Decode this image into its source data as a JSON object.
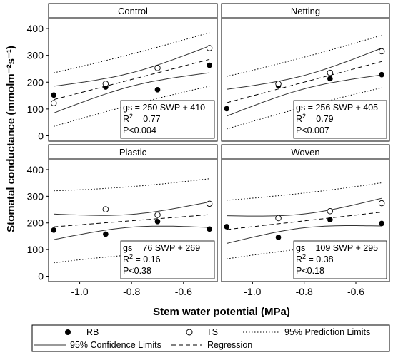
{
  "chart_data": {
    "type": "scatter",
    "xlabel": "Stem water potential (MPa)",
    "ylabel": "Stomatal conductance (mmolm⁻²s⁻¹)",
    "xlim": [
      -1.12,
      -0.47
    ],
    "ylim": [
      -20,
      440
    ],
    "x_ticks": [
      -1.0,
      -0.8,
      -0.6
    ],
    "x_tick_labels": [
      "-1.0",
      "-0.8",
      "-0.6"
    ],
    "y_ticks": [
      0,
      100,
      200,
      300,
      400
    ],
    "y_tick_labels": [
      "0",
      "100",
      "200",
      "300",
      "400"
    ],
    "legend": {
      "placement": "bottom",
      "rb": "RB",
      "ts": "TS",
      "prediction": "95% Prediction Limits",
      "confidence": "95% Confidence Limits",
      "regression": "Regression"
    },
    "panels": [
      {
        "title": "Control",
        "slope": 250,
        "intercept": 410,
        "ci_half": 50,
        "pi_half": 100,
        "eq": "gs = 250 SWP + 410",
        "r2_text": "= 0.77",
        "p": "P<0.004",
        "rb": [
          [
            -1.1,
            152
          ],
          [
            -0.9,
            182
          ],
          [
            -0.7,
            172
          ],
          [
            -0.5,
            263
          ]
        ],
        "ts": [
          [
            -1.1,
            122
          ],
          [
            -0.9,
            194
          ],
          [
            -0.7,
            253
          ],
          [
            -0.5,
            327
          ]
        ]
      },
      {
        "title": "Netting",
        "slope": 256,
        "intercept": 405,
        "ci_half": 50,
        "pi_half": 98,
        "eq": "gs = 256 SWP + 405",
        "r2_text": "= 0.79",
        "p": "P<0.007",
        "rb": [
          [
            -1.1,
            101
          ],
          [
            -0.9,
            187
          ],
          [
            -0.7,
            213
          ],
          [
            -0.5,
            228
          ]
        ],
        "ts": [
          [
            -0.9,
            194
          ],
          [
            -0.7,
            235
          ],
          [
            -0.5,
            315
          ]
        ]
      },
      {
        "title": "Plastic",
        "slope": 76,
        "intercept": 269,
        "ci_half": 48,
        "pi_half": 135,
        "eq": "gs = 76 SWP + 269",
        "r2_text": "= 0.16",
        "p": "P<0.38",
        "rb": [
          [
            -1.1,
            173
          ],
          [
            -0.9,
            158
          ],
          [
            -0.7,
            205
          ],
          [
            -0.5,
            177
          ]
        ],
        "ts": [
          [
            -0.9,
            251
          ],
          [
            -0.7,
            230
          ],
          [
            -0.5,
            272
          ]
        ]
      },
      {
        "title": "Woven",
        "slope": 109,
        "intercept": 295,
        "ci_half": 52,
        "pi_half": 110,
        "eq": "gs = 109 SWP + 295",
        "r2_text": "= 0.38",
        "p": "P<0.18",
        "rb": [
          [
            -1.1,
            186
          ],
          [
            -0.9,
            146
          ],
          [
            -0.7,
            212
          ],
          [
            -0.5,
            198
          ]
        ],
        "ts": [
          [
            -0.9,
            218
          ],
          [
            -0.7,
            244
          ],
          [
            -0.5,
            274
          ]
        ]
      }
    ]
  }
}
